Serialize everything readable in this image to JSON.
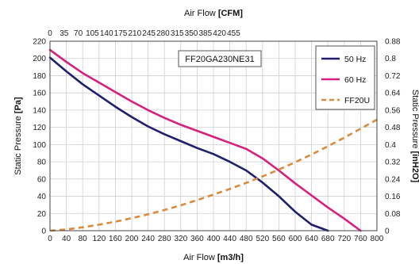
{
  "chart_data": {
    "type": "line",
    "annotation": "FF20GA230NE31",
    "x_bottom": {
      "label_prefix": "Air Flow ",
      "label_unit": "[m3/h]",
      "range": [
        0,
        800
      ],
      "ticks": [
        0,
        40,
        80,
        120,
        160,
        200,
        240,
        280,
        320,
        360,
        400,
        440,
        480,
        520,
        560,
        600,
        640,
        680,
        720,
        760,
        800
      ]
    },
    "x_top": {
      "label_prefix": "Air Flow ",
      "label_unit": "[CFM]",
      "ticks": [
        0,
        35,
        70,
        105,
        140,
        175,
        210,
        245,
        280,
        315,
        350,
        385,
        420,
        455
      ]
    },
    "y_left": {
      "label_prefix": "Static Pressure ",
      "label_unit": "[Pa]",
      "range": [
        0,
        220
      ],
      "ticks": [
        0,
        20,
        40,
        60,
        80,
        100,
        120,
        140,
        160,
        180,
        200,
        220
      ]
    },
    "y_right": {
      "label_prefix": "Static Pressure ",
      "label_unit": "[inH2O]",
      "ticks": [
        "0",
        "0.08",
        "0.16",
        "0.24",
        "0.32",
        "0.4",
        "0.48",
        "0.56",
        "0.64",
        "0.72",
        "0.8",
        "0.88"
      ]
    },
    "grid": true,
    "legend_position": "top-right",
    "series": [
      {
        "name": "50 Hz",
        "color": "#1f1f6e",
        "style": "solid",
        "x": [
          0,
          40,
          80,
          120,
          160,
          200,
          240,
          280,
          320,
          360,
          400,
          440,
          480,
          520,
          560,
          600,
          640,
          680
        ],
        "y": [
          201,
          185,
          170,
          157,
          144,
          132,
          121,
          112,
          104,
          96,
          89,
          80,
          70,
          56,
          40,
          22,
          7,
          0
        ]
      },
      {
        "name": "60 Hz",
        "color": "#d6207f",
        "style": "solid",
        "x": [
          0,
          40,
          80,
          120,
          160,
          200,
          240,
          280,
          320,
          360,
          400,
          440,
          480,
          520,
          560,
          600,
          640,
          680,
          720,
          760
        ],
        "y": [
          210,
          196,
          183,
          172,
          161,
          150,
          140,
          131,
          123,
          116,
          109,
          102,
          95,
          84,
          70,
          55,
          41,
          27,
          14,
          0
        ]
      },
      {
        "name": "FF20U",
        "color": "#d98a3a",
        "style": "dashed",
        "x": [
          0,
          40,
          80,
          120,
          160,
          200,
          240,
          280,
          320,
          360,
          400,
          440,
          480,
          520,
          560,
          600,
          640,
          680,
          720,
          760,
          800
        ],
        "y": [
          0,
          1.5,
          4,
          7,
          10.5,
          14.5,
          19,
          24,
          29.5,
          35.5,
          42,
          48.5,
          55.5,
          63,
          71,
          79.5,
          88.5,
          98,
          108,
          118.5,
          129
        ]
      }
    ]
  }
}
